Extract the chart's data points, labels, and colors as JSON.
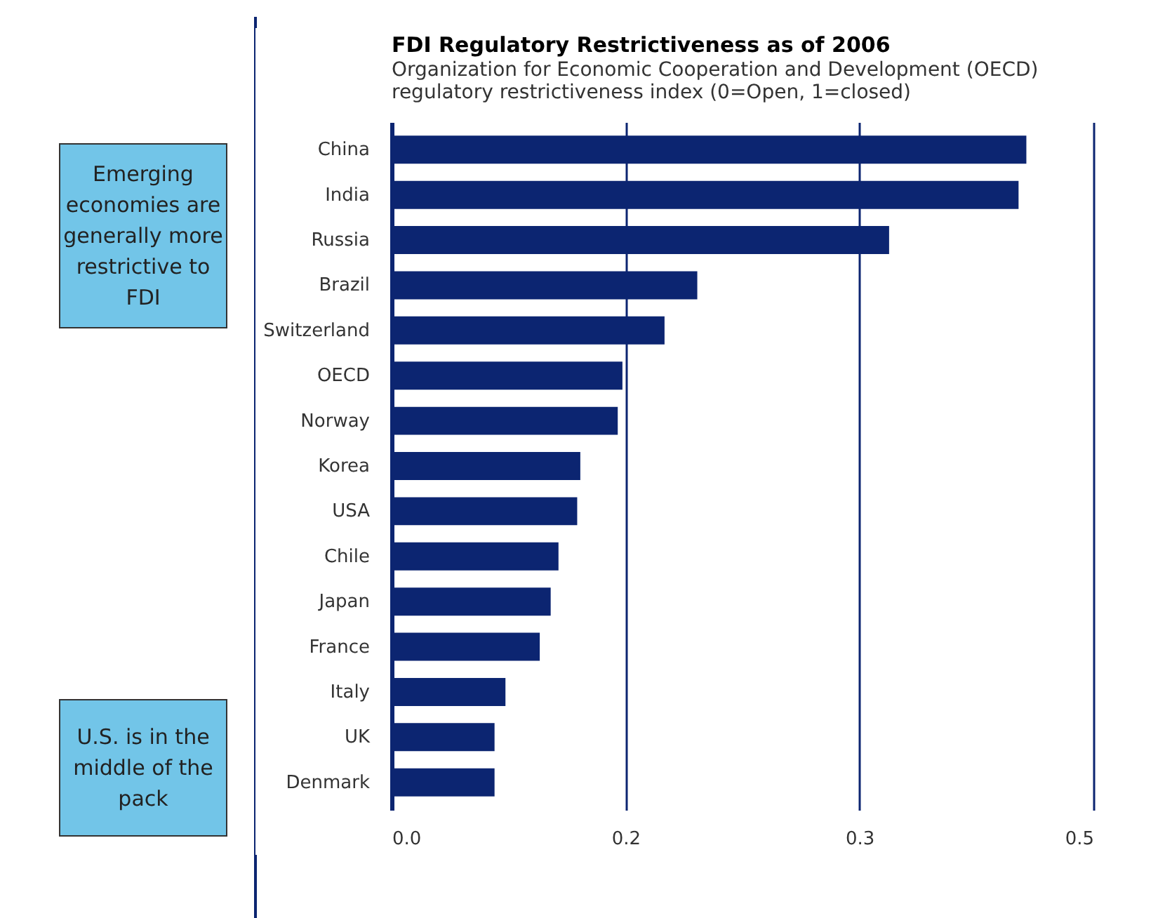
{
  "chart_data": {
    "type": "bar",
    "orientation": "horizontal",
    "title": "FDI Regulatory Restrictiveness as of 2006",
    "subtitle": "Organization for Economic Cooperation and Development (OECD)\nregulatory restrictiveness index (0=Open, 1=closed)",
    "categories": [
      "China",
      "India",
      "Russia",
      "Brazil",
      "Switzerland",
      "OECD",
      "Norway",
      "Korea",
      "USA",
      "Chile",
      "Japan",
      "France",
      "Italy",
      "UK",
      "Denmark"
    ],
    "values": [
      0.407,
      0.402,
      0.319,
      0.196,
      0.175,
      0.148,
      0.145,
      0.121,
      0.119,
      0.107,
      0.102,
      0.095,
      0.073,
      0.066,
      0.066
    ],
    "color": "#0c2571",
    "xlim": [
      0,
      0.45
    ],
    "xticks": [
      {
        "value": 0,
        "label": "0.0"
      },
      {
        "value": 0.15,
        "label": "0.2"
      },
      {
        "value": 0.3,
        "label": "0.3"
      },
      {
        "value": 0.45,
        "label": "0.5"
      }
    ],
    "grid": "x",
    "annotations": [
      "Emerging economies are generally more restrictive to FDI",
      "U.S. is in the middle of the pack"
    ]
  }
}
